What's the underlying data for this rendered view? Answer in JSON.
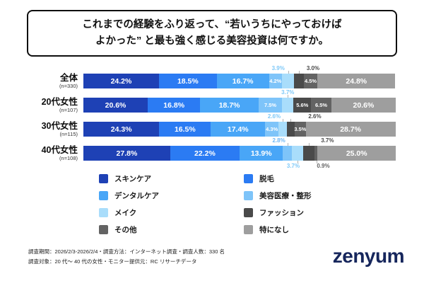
{
  "title": {
    "line1": "これまでの経験をふり返って、“若いうちにやっておけば",
    "line2": "よかった” と最も強く感じる美容投資は何ですか。"
  },
  "chart_data": {
    "type": "bar",
    "stacked": true,
    "orientation": "horizontal",
    "value_unit": "%",
    "xlim": [
      0,
      100
    ],
    "legend_position": "bottom",
    "title": "これまでの経験をふり返って、“若いうちにやっておけばよかった” と最も強く感じる美容投資は何ですか。",
    "series_names": [
      "スキンケア",
      "脱毛",
      "デンタルケア",
      "美容医療・整形",
      "メイク",
      "ファッション",
      "その他",
      "特になし"
    ],
    "colors": [
      "#1e41b5",
      "#2b7bf3",
      "#49a6f7",
      "#7ec4f9",
      "#a9ddfb",
      "#4a4a4a",
      "#636363",
      "#9e9e9e"
    ],
    "rows": [
      {
        "label": "全体",
        "n": "(n=330)",
        "segments": [
          {
            "v": 24.2,
            "t": "24.2%",
            "p": "in"
          },
          {
            "v": 18.5,
            "t": "18.5%",
            "p": "in"
          },
          {
            "v": 16.7,
            "t": "16.7%",
            "p": "in"
          },
          {
            "v": 4.2,
            "t": "4.2%",
            "p": "ins"
          },
          {
            "v": 3.9,
            "t": "3.9%",
            "p": "ca",
            "dx": -14,
            "tc": "#7fc9f8"
          },
          {
            "v": 3.0,
            "t": "3.0%",
            "p": "ca",
            "dx": 20,
            "tc": "#4a4a4a"
          },
          {
            "v": 4.5,
            "t": "4.5%",
            "p": "ins"
          },
          {
            "v": 24.8,
            "t": "24.8%",
            "p": "in"
          }
        ]
      },
      {
        "label": "20代女性",
        "n": "(n=107)",
        "segments": [
          {
            "v": 20.6,
            "t": "20.6%",
            "p": "in"
          },
          {
            "v": 16.8,
            "t": "16.8%",
            "p": "in"
          },
          {
            "v": 18.7,
            "t": "18.7%",
            "p": "in"
          },
          {
            "v": 7.5,
            "t": "7.5%",
            "p": "ins"
          },
          {
            "v": 3.7,
            "t": "3.7%",
            "p": "ca",
            "dx": 0,
            "tc": "#7fc9f8"
          },
          {
            "v": 5.6,
            "t": "5.6%",
            "p": "ins"
          },
          {
            "v": 6.5,
            "t": "6.5%",
            "p": "ins"
          },
          {
            "v": 20.6,
            "t": "20.6%",
            "p": "in"
          }
        ]
      },
      {
        "label": "30代女性",
        "n": "(n=115)",
        "segments": [
          {
            "v": 24.3,
            "t": "24.3%",
            "p": "in"
          },
          {
            "v": 16.5,
            "t": "16.5%",
            "p": "in"
          },
          {
            "v": 17.4,
            "t": "17.4%",
            "p": "in"
          },
          {
            "v": 4.3,
            "t": "4.3%",
            "p": "ins"
          },
          {
            "v": 2.6,
            "t": "2.6%",
            "p": "ca",
            "dx": -12,
            "tc": "#7fc9f8"
          },
          {
            "v": 2.6,
            "t": "2.6%",
            "p": "ca",
            "dx": 34,
            "tc": "#4a4a4a"
          },
          {
            "v": 3.5,
            "t": "3.5%",
            "p": "ins"
          },
          {
            "v": 28.7,
            "t": "28.7%",
            "p": "in"
          }
        ]
      },
      {
        "label": "40代女性",
        "n": "(n=108)",
        "segments": [
          {
            "v": 27.8,
            "t": "27.8%",
            "p": "in"
          },
          {
            "v": 22.2,
            "t": "22.2%",
            "p": "in"
          },
          {
            "v": 13.9,
            "t": "13.9%",
            "p": "in"
          },
          {
            "v": 2.8,
            "t": "2.8%",
            "p": "ca",
            "dx": -12,
            "tc": "#6db7f5"
          },
          {
            "v": 3.7,
            "t": "3.7%",
            "p": "cb",
            "dx": -6,
            "tc": "#7fc9f8"
          },
          {
            "v": 3.7,
            "t": "3.7%",
            "p": "ca",
            "dx": 26,
            "tc": "#4a4a4a"
          },
          {
            "v": 0.9,
            "t": "0.9%",
            "p": "cb",
            "dx": 10,
            "tc": "#636363"
          },
          {
            "v": 25.0,
            "t": "25.0%",
            "p": "in"
          }
        ]
      }
    ]
  },
  "legend": {
    "items": [
      {
        "label": "スキンケア",
        "color": "#1e41b5"
      },
      {
        "label": "脱毛",
        "color": "#2b7bf3"
      },
      {
        "label": "デンタルケア",
        "color": "#49a6f7"
      },
      {
        "label": "美容医療・整形",
        "color": "#7ec4f9"
      },
      {
        "label": "メイク",
        "color": "#a9ddfb"
      },
      {
        "label": "ファッション",
        "color": "#4a4a4a"
      },
      {
        "label": "その他",
        "color": "#636363"
      },
      {
        "label": "特になし",
        "color": "#9e9e9e"
      }
    ]
  },
  "footer": {
    "line1": "調査期間：2026/2/3-2026/2/4・調査方法：インターネット調査・調査人数：330 名",
    "line2": "調査対象：20 代〜 40 代の女性・モニター提供元：RC リサーチデータ"
  },
  "logo": {
    "text": "zenyum"
  }
}
